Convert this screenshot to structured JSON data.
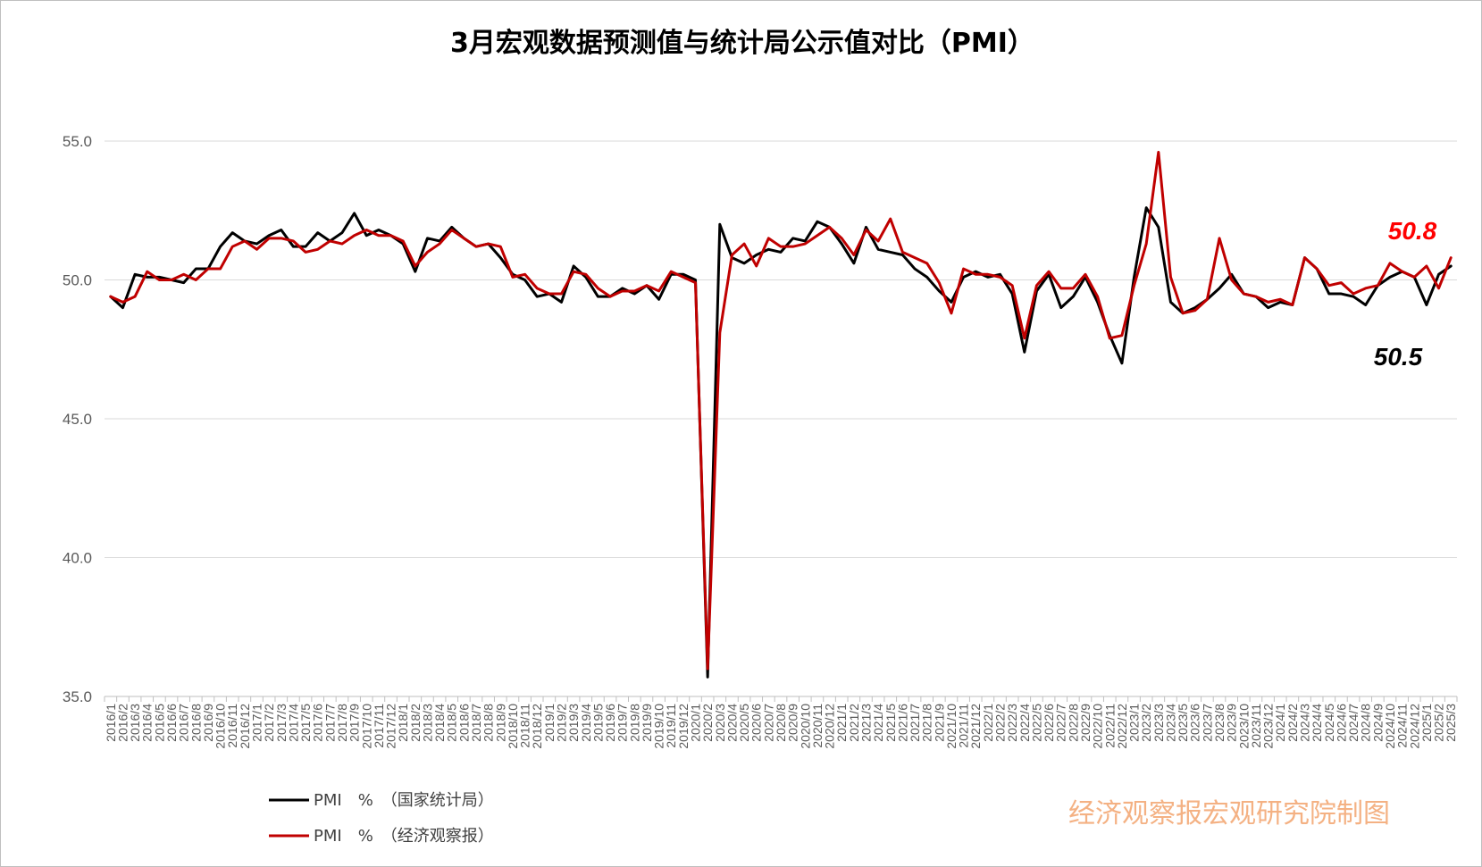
{
  "chart_data": {
    "type": "line",
    "title": "3月宏观数据预测值与统计局公示值对比（PMI）",
    "xlabel": "",
    "ylabel": "",
    "ylim": [
      35.0,
      55.0
    ],
    "yticks": [
      "35.0",
      "40.0",
      "45.0",
      "50.0",
      "55.0"
    ],
    "grid": "horizontal-major",
    "legend_position": "bottom-left",
    "x": [
      "2016/1",
      "2016/2",
      "2016/3",
      "2016/4",
      "2016/5",
      "2016/6",
      "2016/7",
      "2016/8",
      "2016/9",
      "2016/10",
      "2016/11",
      "2016/12",
      "2017/1",
      "2017/2",
      "2017/3",
      "2017/4",
      "2017/5",
      "2017/6",
      "2017/7",
      "2017/8",
      "2017/9",
      "2017/10",
      "2017/11",
      "2017/12",
      "2018/1",
      "2018/2",
      "2018/3",
      "2018/4",
      "2018/5",
      "2018/6",
      "2018/7",
      "2018/8",
      "2018/9",
      "2018/10",
      "2018/11",
      "2018/12",
      "2019/1",
      "2019/2",
      "2019/3",
      "2019/4",
      "2019/5",
      "2019/6",
      "2019/7",
      "2019/8",
      "2019/9",
      "2019/10",
      "2019/11",
      "2019/12",
      "2020/1",
      "2020/2",
      "2020/3",
      "2020/4",
      "2020/5",
      "2020/6",
      "2020/7",
      "2020/8",
      "2020/9",
      "2020/10",
      "2020/11",
      "2020/12",
      "2021/1",
      "2021/2",
      "2021/3",
      "2021/4",
      "2021/5",
      "2021/6",
      "2021/7",
      "2021/8",
      "2021/9",
      "2021/10",
      "2021/11",
      "2021/12",
      "2022/1",
      "2022/2",
      "2022/3",
      "2022/4",
      "2022/5",
      "2022/6",
      "2022/7",
      "2022/8",
      "2022/9",
      "2022/10",
      "2022/11",
      "2022/12",
      "2023/1",
      "2023/2",
      "2023/3",
      "2023/4",
      "2023/5",
      "2023/6",
      "2023/7",
      "2023/8",
      "2023/9",
      "2023/10",
      "2023/11",
      "2023/12",
      "2024/1",
      "2024/2",
      "2024/3",
      "2024/4",
      "2024/5",
      "2024/6",
      "2024/7",
      "2024/8",
      "2024/9",
      "2024/10",
      "2024/11",
      "2024/12",
      "2025/1",
      "2025/2",
      "2025/3"
    ],
    "series": [
      {
        "name": "PMI　%　（国家统计局）",
        "color": "#000000",
        "values": [
          49.4,
          49.0,
          50.2,
          50.1,
          50.1,
          50.0,
          49.9,
          50.4,
          50.4,
          51.2,
          51.7,
          51.4,
          51.3,
          51.6,
          51.8,
          51.2,
          51.2,
          51.7,
          51.4,
          51.7,
          52.4,
          51.6,
          51.8,
          51.6,
          51.3,
          50.3,
          51.5,
          51.4,
          51.9,
          51.5,
          51.2,
          51.3,
          50.8,
          50.2,
          50.0,
          49.4,
          49.5,
          49.2,
          50.5,
          50.1,
          49.4,
          49.4,
          49.7,
          49.5,
          49.8,
          49.3,
          50.2,
          50.2,
          50.0,
          35.7,
          52.0,
          50.8,
          50.6,
          50.9,
          51.1,
          51.0,
          51.5,
          51.4,
          52.1,
          51.9,
          51.3,
          50.6,
          51.9,
          51.1,
          51.0,
          50.9,
          50.4,
          50.1,
          49.6,
          49.2,
          50.1,
          50.3,
          50.1,
          50.2,
          49.5,
          47.4,
          49.6,
          50.2,
          49.0,
          49.4,
          50.1,
          49.2,
          48.0,
          47.0,
          50.1,
          52.6,
          51.9,
          49.2,
          48.8,
          49.0,
          49.3,
          49.7,
          50.2,
          49.5,
          49.4,
          49.0,
          49.2,
          49.1,
          50.8,
          50.4,
          49.5,
          49.5,
          49.4,
          49.1,
          49.8,
          50.1,
          50.3,
          50.1,
          49.1,
          50.2,
          50.5
        ]
      },
      {
        "name": "PMI　%　（经济观察报）",
        "color": "#c00000",
        "values": [
          49.4,
          49.2,
          49.4,
          50.3,
          50.0,
          50.0,
          50.2,
          50.0,
          50.4,
          50.4,
          51.2,
          51.4,
          51.1,
          51.5,
          51.5,
          51.4,
          51.0,
          51.1,
          51.4,
          51.3,
          51.6,
          51.8,
          51.6,
          51.6,
          51.4,
          50.5,
          51.0,
          51.3,
          51.8,
          51.5,
          51.2,
          51.3,
          51.2,
          50.1,
          50.2,
          49.7,
          49.5,
          49.5,
          50.3,
          50.2,
          49.7,
          49.4,
          49.6,
          49.6,
          49.8,
          49.6,
          50.3,
          50.1,
          49.9,
          36.0,
          48.1,
          50.9,
          51.3,
          50.5,
          51.5,
          51.2,
          51.2,
          51.3,
          51.6,
          51.9,
          51.5,
          50.9,
          51.8,
          51.4,
          52.2,
          51.0,
          50.8,
          50.6,
          49.9,
          48.8,
          50.4,
          50.2,
          50.2,
          50.1,
          49.8,
          47.9,
          49.8,
          50.3,
          49.7,
          49.7,
          50.2,
          49.4,
          47.9,
          48.0,
          49.8,
          51.3,
          54.6,
          50.1,
          48.8,
          48.9,
          49.3,
          51.5,
          50.0,
          49.5,
          49.4,
          49.2,
          49.3,
          49.1,
          50.8,
          50.4,
          49.8,
          49.9,
          49.5,
          49.7,
          49.8,
          50.6,
          50.3,
          50.1,
          50.5,
          49.7,
          50.8
        ]
      }
    ],
    "annotations": [
      {
        "text": "50.8",
        "color": "#ff0000"
      },
      {
        "text": "50.5",
        "color": "#000000"
      }
    ]
  },
  "watermark": "经济观察报宏观研究院制图"
}
